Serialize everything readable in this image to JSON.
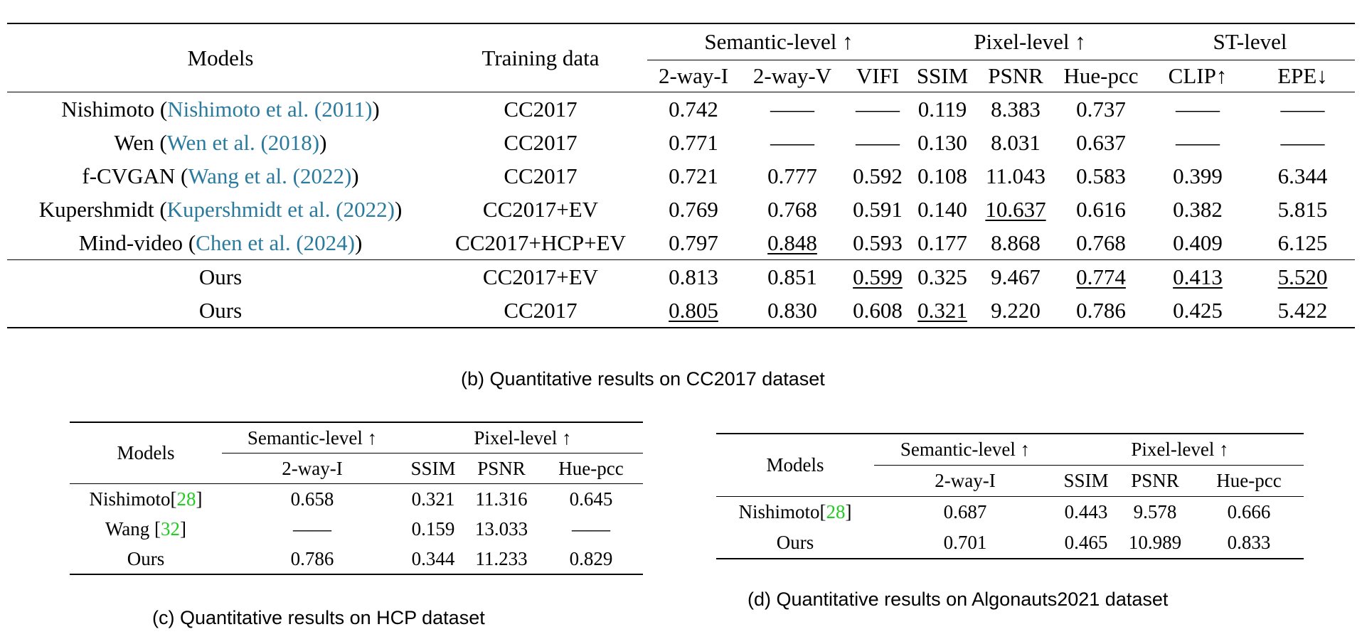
{
  "table_b": {
    "headers": {
      "models": "Models",
      "training": "Training data",
      "semantic": "Semantic-level ↑",
      "pixel": "Pixel-level ↑",
      "st": "ST-level",
      "two_way_i": "2-way-I",
      "two_way_v": "2-way-V",
      "vifi": "VIFI",
      "ssim": "SSIM",
      "psnr": "PSNR",
      "hue": "Hue-pcc",
      "clip": "CLIP↑",
      "epe": "EPE↓"
    },
    "rows": [
      {
        "model": "Nishimoto",
        "cite_author": "Nishimoto et al.",
        "cite_year": "2011",
        "training": "CC2017",
        "two_way_i": "0.742",
        "two_way_v": "——",
        "vifi": "——",
        "ssim": "0.119",
        "psnr": "8.383",
        "hue": "0.737",
        "clip": "——",
        "epe": "——"
      },
      {
        "model": "Wen",
        "cite_author": "Wen et al.",
        "cite_year": "2018",
        "training": "CC2017",
        "two_way_i": "0.771",
        "two_way_v": "——",
        "vifi": "——",
        "ssim": "0.130",
        "psnr": "8.031",
        "hue": "0.637",
        "clip": "——",
        "epe": "——"
      },
      {
        "model": "f-CVGAN",
        "cite_author": "Wang et al.",
        "cite_year": "2022",
        "training": "CC2017",
        "two_way_i": "0.721",
        "two_way_v": "0.777",
        "vifi": "0.592",
        "ssim": "0.108",
        "psnr": "11.043",
        "hue": "0.583",
        "clip": "0.399",
        "epe": "6.344"
      },
      {
        "model": "Kupershmidt",
        "cite_author": "Kupershmidt et al.",
        "cite_year": "2022",
        "training": "CC2017+EV",
        "two_way_i": "0.769",
        "two_way_v": "0.768",
        "vifi": "0.591",
        "ssim": "0.140",
        "psnr": "10.637",
        "hue": "0.616",
        "clip": "0.382",
        "epe": "5.815"
      },
      {
        "model": "Mind-video",
        "cite_author": "Chen et al.",
        "cite_year": "2024",
        "training": "CC2017+HCP+EV",
        "two_way_i": "0.797",
        "two_way_v": "0.848",
        "vifi": "0.593",
        "ssim": "0.177",
        "psnr": "8.868",
        "hue": "0.768",
        "clip": "0.409",
        "epe": "6.125"
      },
      {
        "model": "Ours",
        "training": "CC2017+EV",
        "two_way_i": "0.813",
        "two_way_v": "0.851",
        "vifi": "0.599",
        "ssim": "0.325",
        "psnr": "9.467",
        "hue": "0.774",
        "clip": "0.413",
        "epe": "5.520"
      },
      {
        "model": "Ours",
        "training": "CC2017",
        "two_way_i": "0.805",
        "two_way_v": "0.830",
        "vifi": "0.608",
        "ssim": "0.321",
        "psnr": "9.220",
        "hue": "0.786",
        "clip": "0.425",
        "epe": "5.422"
      }
    ],
    "caption": "(b)  Quantitative results on CC2017 dataset"
  },
  "table_c": {
    "headers": {
      "models": "Models",
      "semantic": "Semantic-level ↑",
      "pixel": "Pixel-level ↑",
      "two_way_i": "2-way-I",
      "ssim": "SSIM",
      "psnr": "PSNR",
      "hue": "Hue-pcc"
    },
    "rows": [
      {
        "model": "Nishimoto",
        "ref": "28",
        "two_way_i": "0.658",
        "ssim": "0.321",
        "psnr": "11.316",
        "hue": "0.645"
      },
      {
        "model": "Wang ",
        "ref": "32",
        "two_way_i": "——",
        "ssim": "0.159",
        "psnr": "13.033",
        "hue": "——"
      },
      {
        "model": "Ours",
        "two_way_i": "0.786",
        "ssim": "0.344",
        "psnr": "11.233",
        "hue": "0.829"
      }
    ],
    "caption": "(c)  Quantitative results on HCP dataset"
  },
  "table_d": {
    "headers": {
      "models": "Models",
      "semantic": "Semantic-level ↑",
      "pixel": "Pixel-level ↑",
      "two_way_i": "2-way-I",
      "ssim": "SSIM",
      "psnr": "PSNR",
      "hue": "Hue-pcc"
    },
    "rows": [
      {
        "model": "Nishimoto",
        "ref": "28",
        "two_way_i": "0.687",
        "ssim": "0.443",
        "psnr": "9.578",
        "hue": "0.666"
      },
      {
        "model": "Ours",
        "two_way_i": "0.701",
        "ssim": "0.465",
        "psnr": "10.989",
        "hue": "0.833"
      }
    ],
    "caption": "(d)  Quantitative results on Algonauts2021 dataset"
  }
}
